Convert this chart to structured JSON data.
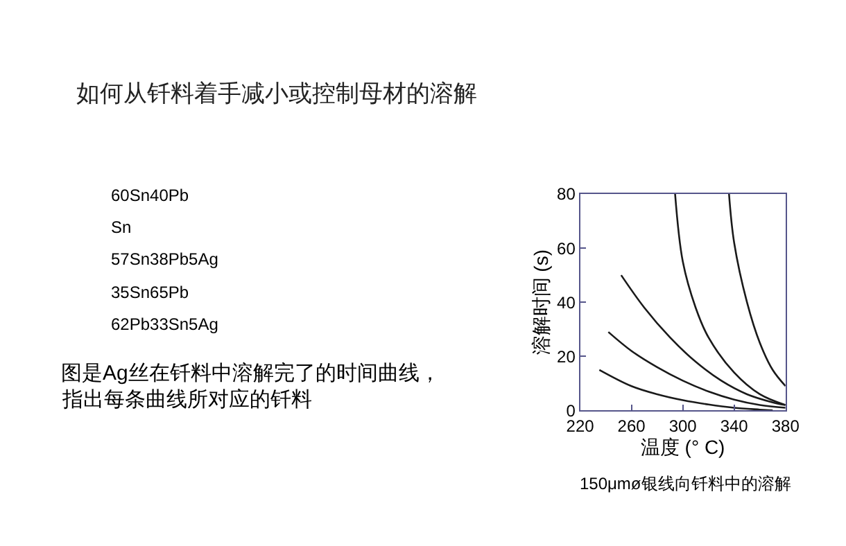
{
  "chart_data": {
    "type": "line",
    "title": "如何从钎料着手减小或控制母材的溶解",
    "xlabel": "温度 (° C)",
    "ylabel": "溶解时间 (s)",
    "xlim": [
      220,
      380
    ],
    "xticks": [
      220,
      260,
      300,
      340,
      380
    ],
    "ylim": [
      0,
      80
    ],
    "yticks": [
      0,
      20,
      40,
      60,
      80
    ],
    "marker": "none",
    "line_style": "solid",
    "series": [
      {
        "color": "#1a1a1a",
        "x": [
          235,
          260,
          280,
          300,
          320,
          340,
          360,
          370
        ],
        "values": [
          15,
          9,
          6,
          3.8,
          2.2,
          1,
          0.3,
          0
        ]
      },
      {
        "color": "#1a1a1a",
        "x": [
          242,
          260,
          280,
          300,
          320,
          340,
          360,
          380
        ],
        "values": [
          29,
          22,
          16,
          11,
          7,
          4,
          2,
          1
        ]
      },
      {
        "color": "#1a1a1a",
        "x": [
          252,
          270,
          290,
          310,
          330,
          350,
          370,
          380
        ],
        "values": [
          50,
          38,
          27,
          18,
          11,
          6,
          3,
          2
        ]
      },
      {
        "color": "#1a1a1a",
        "x": [
          294,
          300,
          310,
          320,
          340,
          360,
          380
        ],
        "values": [
          80,
          55,
          38,
          27,
          14,
          6,
          2
        ]
      },
      {
        "color": "#1a1a1a",
        "x": [
          336,
          340,
          350,
          360,
          370,
          380
        ],
        "values": [
          80,
          62,
          40,
          25,
          15,
          9
        ]
      }
    ],
    "annotations": [
      "60Sn40Pb",
      "Sn",
      "57Sn38Pb5Ag",
      "35Sn65Pb",
      "62Pb33Sn5Ag",
      "图是Ag丝在钎料中溶解完了的时间曲线，",
      "指出每条曲线所对应的钎料",
      "150μmø银线向钎料中的溶解"
    ]
  }
}
